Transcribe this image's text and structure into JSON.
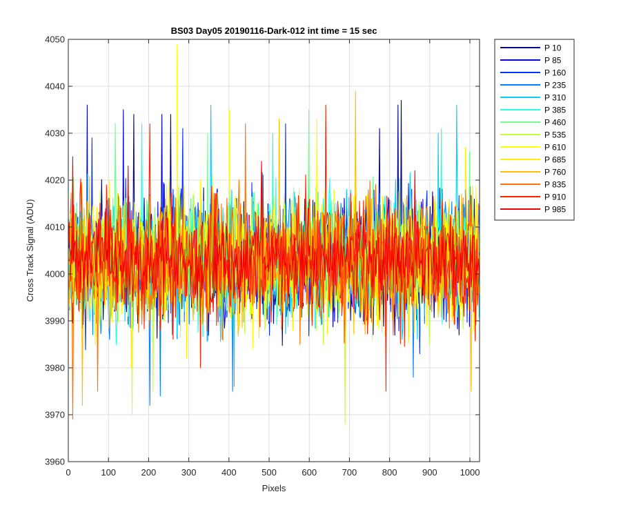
{
  "chart_data": {
    "type": "line",
    "title": "BS03 Day05 20190116-Dark-012 int time = 15 sec",
    "xlabel": "Pixels",
    "ylabel": "Cross Track Signal (ADU)",
    "xlim": [
      0,
      1024
    ],
    "ylim": [
      3960,
      4050
    ],
    "x_ticks": [
      0,
      100,
      200,
      300,
      400,
      500,
      600,
      700,
      800,
      900,
      1000
    ],
    "y_ticks": [
      3960,
      3970,
      3980,
      3990,
      4000,
      4010,
      4020,
      4030,
      4040,
      4050
    ],
    "grid": true,
    "legend_position": "outside-top-right",
    "x_range": [
      1,
      1024
    ],
    "noise_mean": 4003,
    "series": [
      {
        "name": "P 10",
        "color": "#00008F",
        "spread": 6.5,
        "peaks": [
          [
            163,
            4034
          ],
          [
            822,
            4036
          ],
          [
            829,
            4037
          ],
          [
            256,
            4034
          ]
        ]
      },
      {
        "name": "P 85",
        "color": "#0000DF",
        "spread": 6.5,
        "peaks": [
          [
            48,
            4036
          ],
          [
            137,
            4035
          ],
          [
            233,
            4034
          ],
          [
            775,
            4031
          ]
        ]
      },
      {
        "name": "P 160",
        "color": "#0030FF",
        "spread": 6.5,
        "peaks": [
          [
            59,
            4029
          ],
          [
            286,
            4031
          ],
          [
            542,
            4032
          ],
          [
            876,
            3983
          ]
        ]
      },
      {
        "name": "P 235",
        "color": "#0080FF",
        "spread": 6.5,
        "peaks": [
          [
            203,
            3972
          ],
          [
            230,
            3974
          ],
          [
            410,
            3975
          ],
          [
            860,
            3978
          ]
        ]
      },
      {
        "name": "P 310",
        "color": "#00CFFF",
        "spread": 6.5,
        "peaks": [
          [
            356,
            4036
          ],
          [
            413,
            3976
          ],
          [
            922,
            4030
          ],
          [
            968,
            4036
          ]
        ]
      },
      {
        "name": "P 385",
        "color": "#20FFDF",
        "spread": 6.5,
        "peaks": [
          [
            183,
            4032
          ],
          [
            510,
            4030
          ],
          [
            930,
            4031
          ],
          [
            120,
            3985
          ]
        ]
      },
      {
        "name": "P 460",
        "color": "#70FF8F",
        "spread": 6.5,
        "peaks": [
          [
            117,
            4032
          ],
          [
            347,
            4030
          ],
          [
            600,
            4035
          ],
          [
            1000,
            4026
          ]
        ]
      },
      {
        "name": "P 535",
        "color": "#BFFF40",
        "spread": 6.5,
        "peaks": [
          [
            159,
            3970
          ],
          [
            690,
            3968
          ],
          [
            212,
            3975
          ],
          [
            900,
            3985
          ]
        ]
      },
      {
        "name": "P 610",
        "color": "#FFFF00",
        "spread": 6.5,
        "peaks": [
          [
            272,
            4049
          ],
          [
            402,
            4035
          ],
          [
            620,
            4033
          ],
          [
            460,
            3984
          ]
        ]
      },
      {
        "name": "P 685",
        "color": "#FFEF00",
        "spread": 6.5,
        "peaks": [
          [
            157,
            3980
          ],
          [
            295,
            3982
          ],
          [
            990,
            4027
          ],
          [
            560,
            3988
          ]
        ]
      },
      {
        "name": "P 760",
        "color": "#FFBF00",
        "spread": 6.5,
        "peaks": [
          [
            715,
            4039
          ],
          [
            525,
            4033
          ],
          [
            35,
            3972
          ],
          [
            1004,
            3975
          ]
        ]
      },
      {
        "name": "P 835",
        "color": "#FF7000",
        "spread": 6.5,
        "peaks": [
          [
            11,
            3969
          ],
          [
            73,
            3975
          ],
          [
            441,
            4032
          ],
          [
            577,
            3985
          ]
        ]
      },
      {
        "name": "P 910",
        "color": "#FF2000",
        "spread": 6.5,
        "peaks": [
          [
            203,
            4032
          ],
          [
            642,
            4036
          ],
          [
            791,
            3975
          ],
          [
            330,
            3980
          ]
        ]
      },
      {
        "name": "P 985",
        "color": "#EF0000",
        "spread": 4.5,
        "peaks": [
          [
            12,
            4025
          ],
          [
            150,
            4023
          ],
          [
            482,
            4024
          ],
          [
            864,
            4022
          ]
        ]
      }
    ]
  }
}
